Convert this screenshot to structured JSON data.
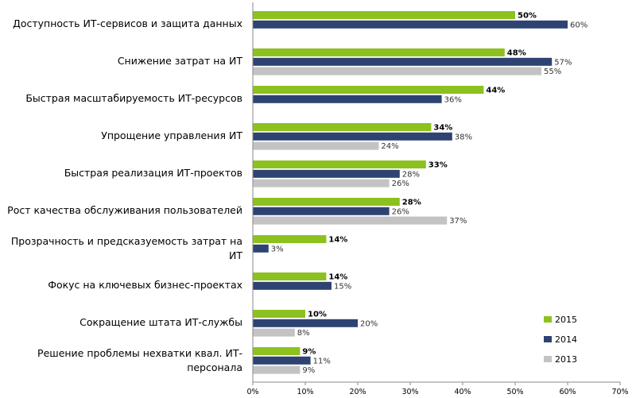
{
  "chart_data": {
    "type": "bar",
    "orientation": "horizontal",
    "categories": [
      [
        "Доступность ИТ-сервисов и защита данных"
      ],
      [
        "Снижение затрат на ИТ"
      ],
      [
        "Быстрая масштабируемость ИТ-ресурсов"
      ],
      [
        "Упрощение управления ИТ"
      ],
      [
        "Быстрая реализация ИТ-проектов"
      ],
      [
        "Рост качества обслуживания пользователей"
      ],
      [
        "Прозрачность и предсказуемость затрат на",
        "ИТ"
      ],
      [
        "Фокус на ключевых бизнес-проектах"
      ],
      [
        "Сокращение штата ИТ-службы"
      ],
      [
        "Решение проблемы нехватки квал. ИТ-",
        "персонала"
      ]
    ],
    "series": [
      {
        "name": "2015",
        "color": "#8cc11f",
        "values": [
          50,
          48,
          44,
          34,
          33,
          28,
          14,
          14,
          10,
          9
        ],
        "labels": [
          "50%",
          "48%",
          "44%",
          "34%",
          "33%",
          "28%",
          "14%",
          "14%",
          "10%",
          "9%"
        ],
        "bold": true
      },
      {
        "name": "2014",
        "color": "#2e4372",
        "values": [
          60,
          57,
          36,
          38,
          28,
          26,
          3,
          15,
          20,
          11
        ],
        "labels": [
          "60%",
          "57%",
          "36%",
          "38%",
          "28%",
          "26%",
          "3%",
          "15%",
          "20%",
          "11%"
        ],
        "bold": false
      },
      {
        "name": "2013",
        "color": "#c3c3c3",
        "values": [
          null,
          55,
          null,
          24,
          26,
          37,
          null,
          null,
          8,
          9
        ],
        "labels": [
          null,
          "55%",
          null,
          "24%",
          "26%",
          "37%",
          null,
          null,
          "8%",
          "9%"
        ],
        "bold": false
      }
    ],
    "xlim": [
      0,
      70
    ],
    "xticks": [
      "0%",
      "10%",
      "20%",
      "30%",
      "40%",
      "50%",
      "60%",
      "70%"
    ],
    "legend": [
      {
        "name": "2015",
        "color": "#8cc11f"
      },
      {
        "name": "2014",
        "color": "#2e4372"
      },
      {
        "name": "2013",
        "color": "#c3c3c3"
      }
    ],
    "legend_position": "bottom-right",
    "grid": false
  }
}
